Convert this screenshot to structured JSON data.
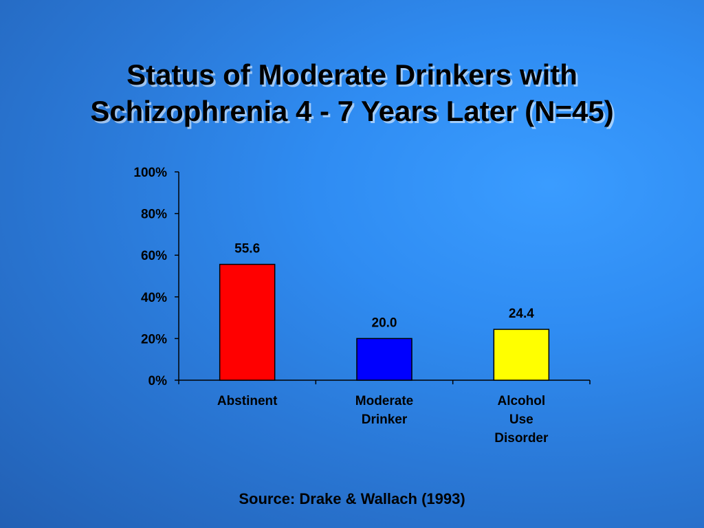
{
  "slide": {
    "title_line1": "Status of Moderate Drinkers with",
    "title_line2": "Schizophrenia 4 - 7 Years Later (N=45)",
    "source": "Source: Drake & Wallach (1993)"
  },
  "chart_data": {
    "type": "bar",
    "title": "",
    "categories": [
      [
        "Abstinent"
      ],
      [
        "Moderate",
        "Drinker"
      ],
      [
        "Alcohol",
        "Use",
        "Disorder"
      ]
    ],
    "values": [
      55.6,
      20.0,
      24.4
    ],
    "data_labels": [
      "55.6",
      "20.0",
      "24.4"
    ],
    "colors": [
      "#ff0000",
      "#0000ff",
      "#ffff00"
    ],
    "ylim": [
      0,
      100
    ],
    "yticks": [
      0,
      20,
      40,
      60,
      80,
      100
    ],
    "ytick_labels": [
      "0%",
      "20%",
      "40%",
      "60%",
      "80%",
      "100%"
    ],
    "xlabel": "",
    "ylabel": "",
    "grid": false,
    "legend": "none"
  }
}
